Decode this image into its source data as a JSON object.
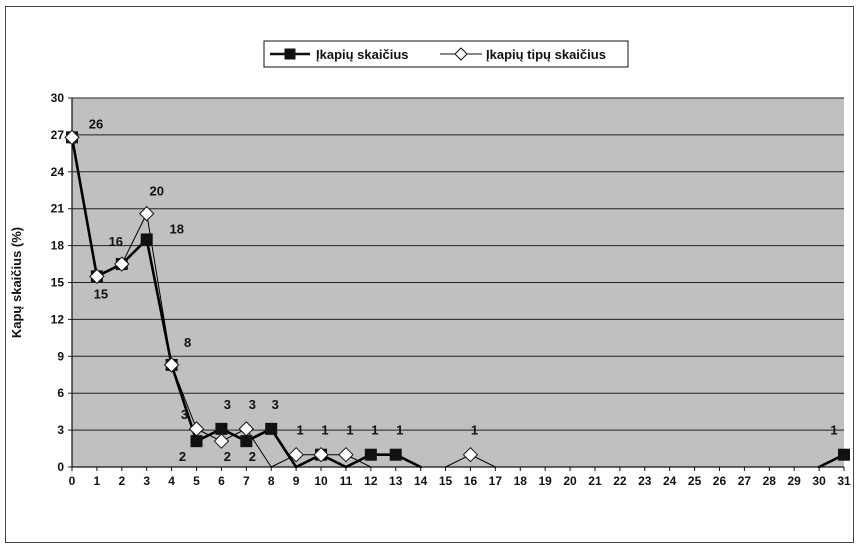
{
  "chart_data": {
    "type": "line",
    "title": "",
    "xlabel": "",
    "ylabel": "Kapų skaičius (%)",
    "x": [
      0,
      1,
      2,
      3,
      4,
      5,
      6,
      7,
      8,
      9,
      10,
      11,
      12,
      13,
      14,
      15,
      16,
      17,
      18,
      19,
      20,
      21,
      22,
      23,
      24,
      25,
      26,
      27,
      28,
      29,
      30,
      31
    ],
    "xlim": [
      0,
      31
    ],
    "ylim": [
      0,
      30
    ],
    "yticks": [
      0,
      3,
      6,
      9,
      12,
      15,
      18,
      21,
      24,
      27,
      30
    ],
    "grid": true,
    "legend_position": "top-center",
    "series": [
      {
        "name": "Įkapių skaičius",
        "marker": "filled-square",
        "color": "#000000",
        "points": [
          {
            "x": 0,
            "y": 26.8
          },
          {
            "x": 1,
            "y": 15.5
          },
          {
            "x": 2,
            "y": 16.5
          },
          {
            "x": 3,
            "y": 18.5
          },
          {
            "x": 4,
            "y": 8.3
          },
          {
            "x": 5,
            "y": 2.1
          },
          {
            "x": 6,
            "y": 3.1
          },
          {
            "x": 7,
            "y": 2.1
          },
          {
            "x": 8,
            "y": 3.1
          },
          {
            "x": 9,
            "y": 0
          },
          {
            "x": 10,
            "y": 1
          },
          {
            "x": 11,
            "y": 0
          },
          {
            "x": 12,
            "y": 1
          },
          {
            "x": 13,
            "y": 1
          },
          {
            "x": 14,
            "y": 0
          },
          {
            "x": 30,
            "y": 0
          },
          {
            "x": 31,
            "y": 1
          }
        ]
      },
      {
        "name": "Įkapių tipų skaičius",
        "marker": "open-diamond",
        "color": "#000000",
        "points": [
          {
            "x": 0,
            "y": 26.8
          },
          {
            "x": 1,
            "y": 15.5
          },
          {
            "x": 2,
            "y": 16.5
          },
          {
            "x": 3,
            "y": 20.6
          },
          {
            "x": 4,
            "y": 8.3
          },
          {
            "x": 5,
            "y": 3.1
          },
          {
            "x": 6,
            "y": 2.1
          },
          {
            "x": 7,
            "y": 3.1
          },
          {
            "x": 8,
            "y": 0
          },
          {
            "x": 9,
            "y": 1
          },
          {
            "x": 10,
            "y": 1
          },
          {
            "x": 11,
            "y": 1
          },
          {
            "x": 12,
            "y": 0
          },
          {
            "x": 15,
            "y": 0
          },
          {
            "x": 16,
            "y": 1
          },
          {
            "x": 17,
            "y": 0
          }
        ]
      }
    ],
    "data_labels": [
      {
        "text": "26",
        "x": 0,
        "y": 26.8
      },
      {
        "text": "15",
        "x": 1,
        "y": 15.5
      },
      {
        "text": "16",
        "x": 2,
        "y": 16.5
      },
      {
        "text": "20",
        "x": 3,
        "y": 20.6
      },
      {
        "text": "18",
        "x": 3,
        "y": 18.5
      },
      {
        "text": "8",
        "x": 4,
        "y": 8.3
      },
      {
        "text": "3",
        "x": 5,
        "y": 3.1
      },
      {
        "text": "2",
        "x": 5,
        "y": 2.1
      },
      {
        "text": "3",
        "x": 6,
        "y": 3.1
      },
      {
        "text": "2",
        "x": 6,
        "y": 2.1
      },
      {
        "text": "3",
        "x": 7,
        "y": 3.1
      },
      {
        "text": "2",
        "x": 7,
        "y": 2.1
      },
      {
        "text": "3",
        "x": 8,
        "y": 3.1
      },
      {
        "text": "1",
        "x": 9,
        "y": 1
      },
      {
        "text": "1",
        "x": 10,
        "y": 1
      },
      {
        "text": "1",
        "x": 11,
        "y": 1
      },
      {
        "text": "1",
        "x": 12,
        "y": 1
      },
      {
        "text": "1",
        "x": 13,
        "y": 1
      },
      {
        "text": "1",
        "x": 16,
        "y": 1
      },
      {
        "text": "1",
        "x": 31,
        "y": 1
      }
    ]
  }
}
